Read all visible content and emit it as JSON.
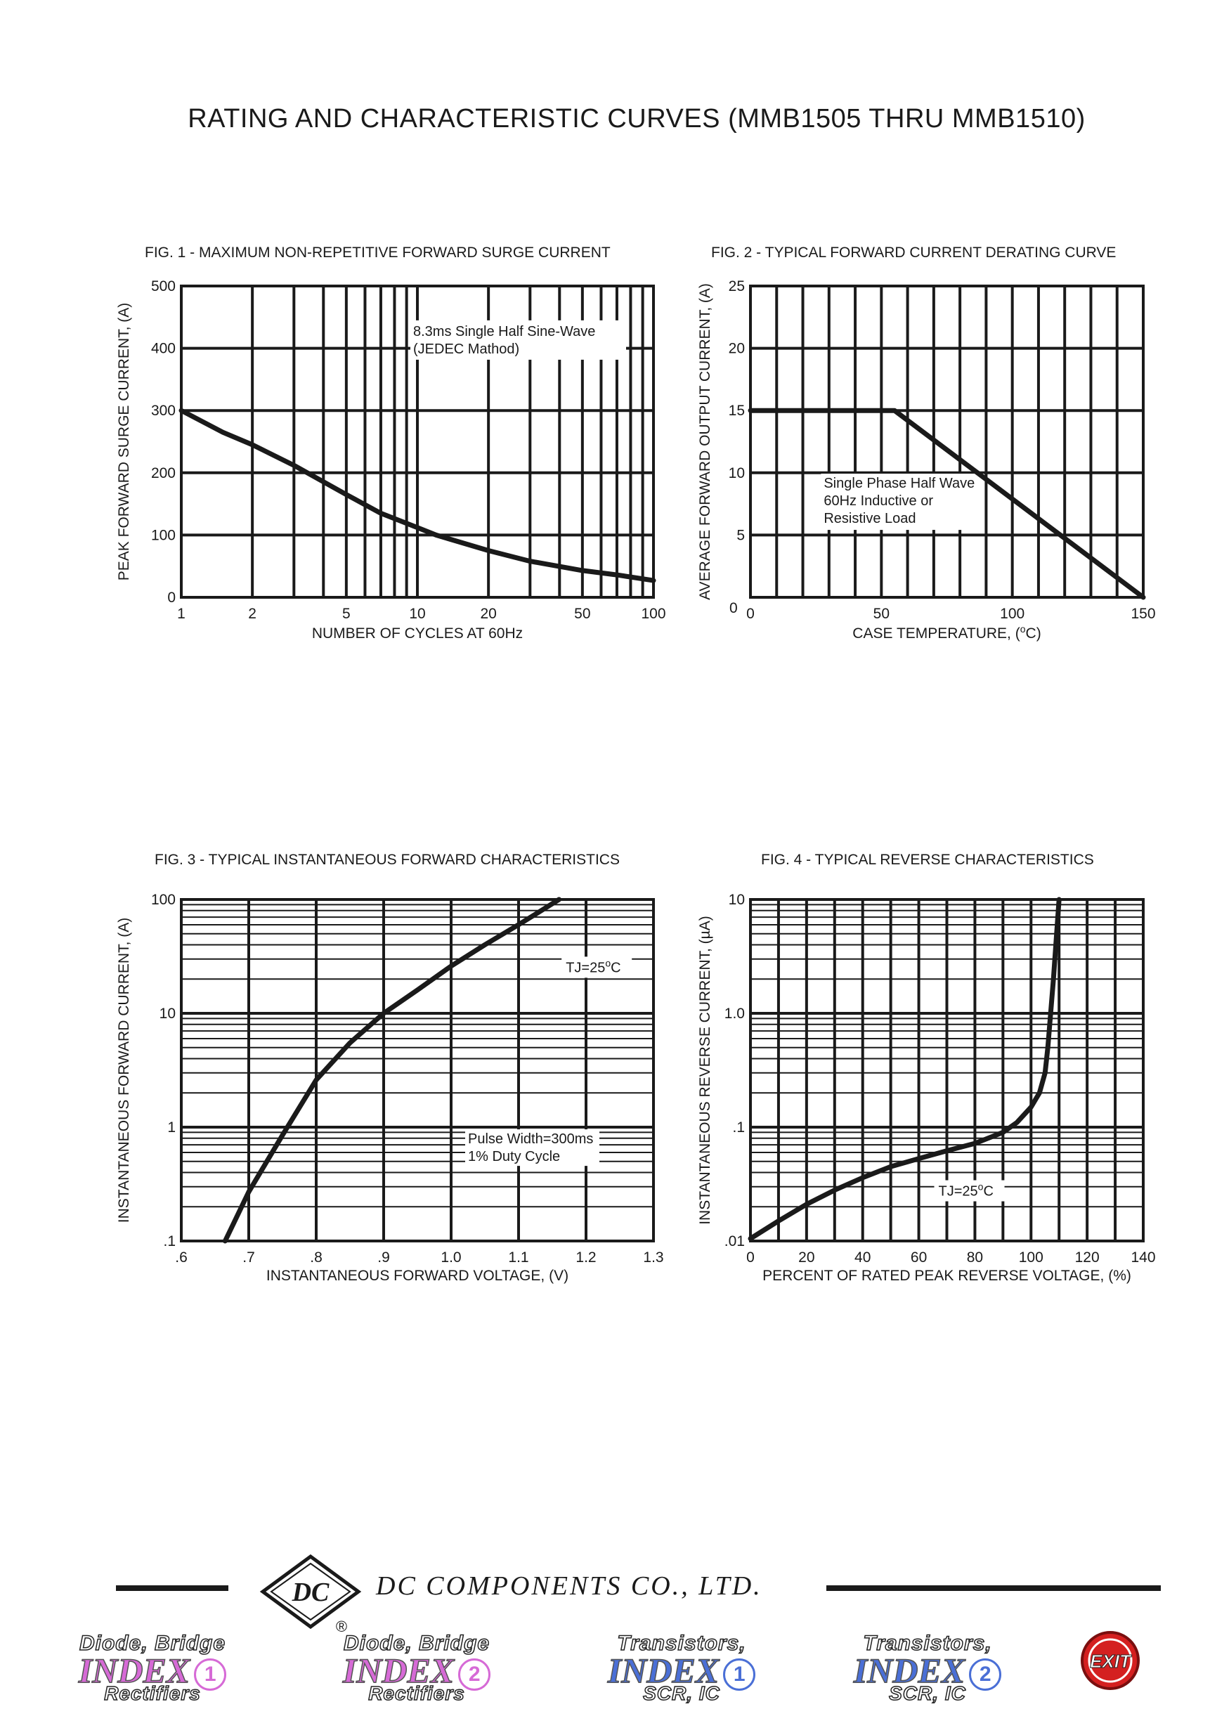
{
  "page_title": "RATING AND CHARACTERISTIC CURVES (MMB1505 THRU MMB1510)",
  "footer": {
    "company_name": "DC COMPONENTS CO., LTD.",
    "logo_text": "DC",
    "registered_mark": "®",
    "nav": [
      {
        "line1": "Diode, Bridge",
        "line2": "INDEX",
        "num": "1",
        "line3": "Rectifiers",
        "color": "#d66ad6"
      },
      {
        "line1": "Diode, Bridge",
        "line2": "INDEX",
        "num": "2",
        "line3": "Rectifiers",
        "color": "#d66ad6"
      },
      {
        "line1": "Transistors,",
        "line2": "INDEX",
        "num": "1",
        "line3": "SCR, IC",
        "color": "#4a6fd6"
      },
      {
        "line1": "Transistors,",
        "line2": "INDEX",
        "num": "2",
        "line3": "SCR, IC",
        "color": "#4a6fd6"
      }
    ],
    "exit_label": "EXIT",
    "exit_color": "#d42020"
  },
  "chart_data": [
    {
      "type": "line",
      "title": "FIG. 1 - MAXIMUM NON-REPETITIVE FORWARD SURGE CURRENT",
      "xlabel": "NUMBER OF CYCLES AT 60Hz",
      "ylabel": "PEAK FORWARD SURGE CURRENT, (A)",
      "x_scale": "log",
      "xlim": [
        1,
        100
      ],
      "ylim": [
        0,
        500
      ],
      "x_ticks": [
        "1",
        "2",
        "5",
        "10",
        "20",
        "50",
        "100"
      ],
      "x_tick_values": [
        1,
        2,
        5,
        10,
        20,
        50,
        100
      ],
      "y_ticks": [
        "0",
        "100",
        "200",
        "300",
        "400",
        "500"
      ],
      "y_tick_values": [
        0,
        100,
        200,
        300,
        400,
        500
      ],
      "grid": true,
      "annotation": [
        "8.3ms Single Half Sine-Wave",
        "(JEDEC Mathod)"
      ],
      "series": [
        {
          "x": [
            1,
            1.5,
            2,
            3,
            5,
            7,
            10,
            12,
            20,
            30,
            50,
            70,
            100
          ],
          "y": [
            300,
            265,
            245,
            212,
            165,
            135,
            112,
            100,
            75,
            58,
            43,
            36,
            27
          ]
        }
      ]
    },
    {
      "type": "line",
      "title": "FIG. 2 - TYPICAL FORWARD CURRENT DERATING CURVE",
      "xlabel": "CASE TEMPERATURE, (",
      "xlabel_sup": "o",
      "xlabel_end": "C)",
      "ylabel": "AVERAGE FORWARD OUTPUT CURRENT, (A)",
      "xlim": [
        0,
        150
      ],
      "ylim": [
        0,
        25
      ],
      "x_ticks": [
        "0",
        "50",
        "100",
        "150"
      ],
      "x_tick_values": [
        0,
        50,
        100,
        150
      ],
      "y_ticks": [
        "5",
        "10",
        "15",
        "20",
        "25"
      ],
      "y_tick_values": [
        5,
        10,
        15,
        20,
        25
      ],
      "grid": true,
      "annotation": [
        "Single Phase Half Wave",
        "60Hz Inductive or",
        "Resistive Load"
      ],
      "series": [
        {
          "x": [
            0,
            55,
            150
          ],
          "y": [
            15,
            15,
            0
          ]
        }
      ]
    },
    {
      "type": "line",
      "title": "FIG. 3 - TYPICAL INSTANTANEOUS FORWARD CHARACTERISTICS",
      "xlabel": "INSTANTANEOUS FORWARD VOLTAGE, (V)",
      "ylabel": "INSTANTANEOUS FORWARD CURRENT, (A)",
      "y_scale": "log",
      "xlim": [
        0.6,
        1.3
      ],
      "ylim": [
        0.1,
        100
      ],
      "x_ticks": [
        ".6",
        ".7",
        ".8",
        ".9",
        "1.0",
        "1.1",
        "1.2",
        "1.3"
      ],
      "x_tick_values": [
        0.6,
        0.7,
        0.8,
        0.9,
        1.0,
        1.1,
        1.2,
        1.3
      ],
      "y_ticks": [
        ".1",
        "1",
        "10",
        "100"
      ],
      "y_tick_values": [
        0.1,
        1,
        10,
        100
      ],
      "grid": true,
      "annotation_tj": [
        "TJ=25",
        "o",
        "C"
      ],
      "annotation": [
        "Pulse Width=300ms",
        "1% Duty Cycle"
      ],
      "series": [
        {
          "x": [
            0.665,
            0.7,
            0.75,
            0.8,
            0.85,
            0.9,
            0.95,
            1.0,
            1.05,
            1.1,
            1.16
          ],
          "y": [
            0.1,
            0.27,
            0.85,
            2.6,
            5.5,
            10,
            16,
            26,
            40,
            60,
            100
          ]
        }
      ]
    },
    {
      "type": "line",
      "title": "FIG. 4 - TYPICAL REVERSE CHARACTERISTICS",
      "xlabel": "PERCENT OF RATED PEAK REVERSE VOLTAGE, (%)",
      "ylabel": "INSTANTANEOUS REVERSE CURRENT, (µA)",
      "y_scale": "log",
      "xlim": [
        0,
        140
      ],
      "ylim": [
        0.01,
        10
      ],
      "x_ticks": [
        "0",
        "20",
        "40",
        "60",
        "80",
        "100",
        "120",
        "140"
      ],
      "x_tick_values": [
        0,
        20,
        40,
        60,
        80,
        100,
        120,
        140
      ],
      "y_ticks": [
        ".01",
        ".1",
        "1.0",
        "10"
      ],
      "y_tick_values": [
        0.01,
        0.1,
        1,
        10
      ],
      "grid": true,
      "annotation_tj": [
        "TJ=25",
        "o",
        "C"
      ],
      "series": [
        {
          "x": [
            0,
            10,
            20,
            30,
            40,
            50,
            60,
            70,
            80,
            90,
            95,
            100,
            103,
            105,
            106,
            107,
            108,
            109,
            110
          ],
          "y": [
            0.0105,
            0.015,
            0.021,
            0.028,
            0.036,
            0.045,
            0.053,
            0.062,
            0.072,
            0.09,
            0.11,
            0.15,
            0.2,
            0.3,
            0.5,
            1,
            2,
            4.5,
            10
          ]
        }
      ]
    }
  ]
}
